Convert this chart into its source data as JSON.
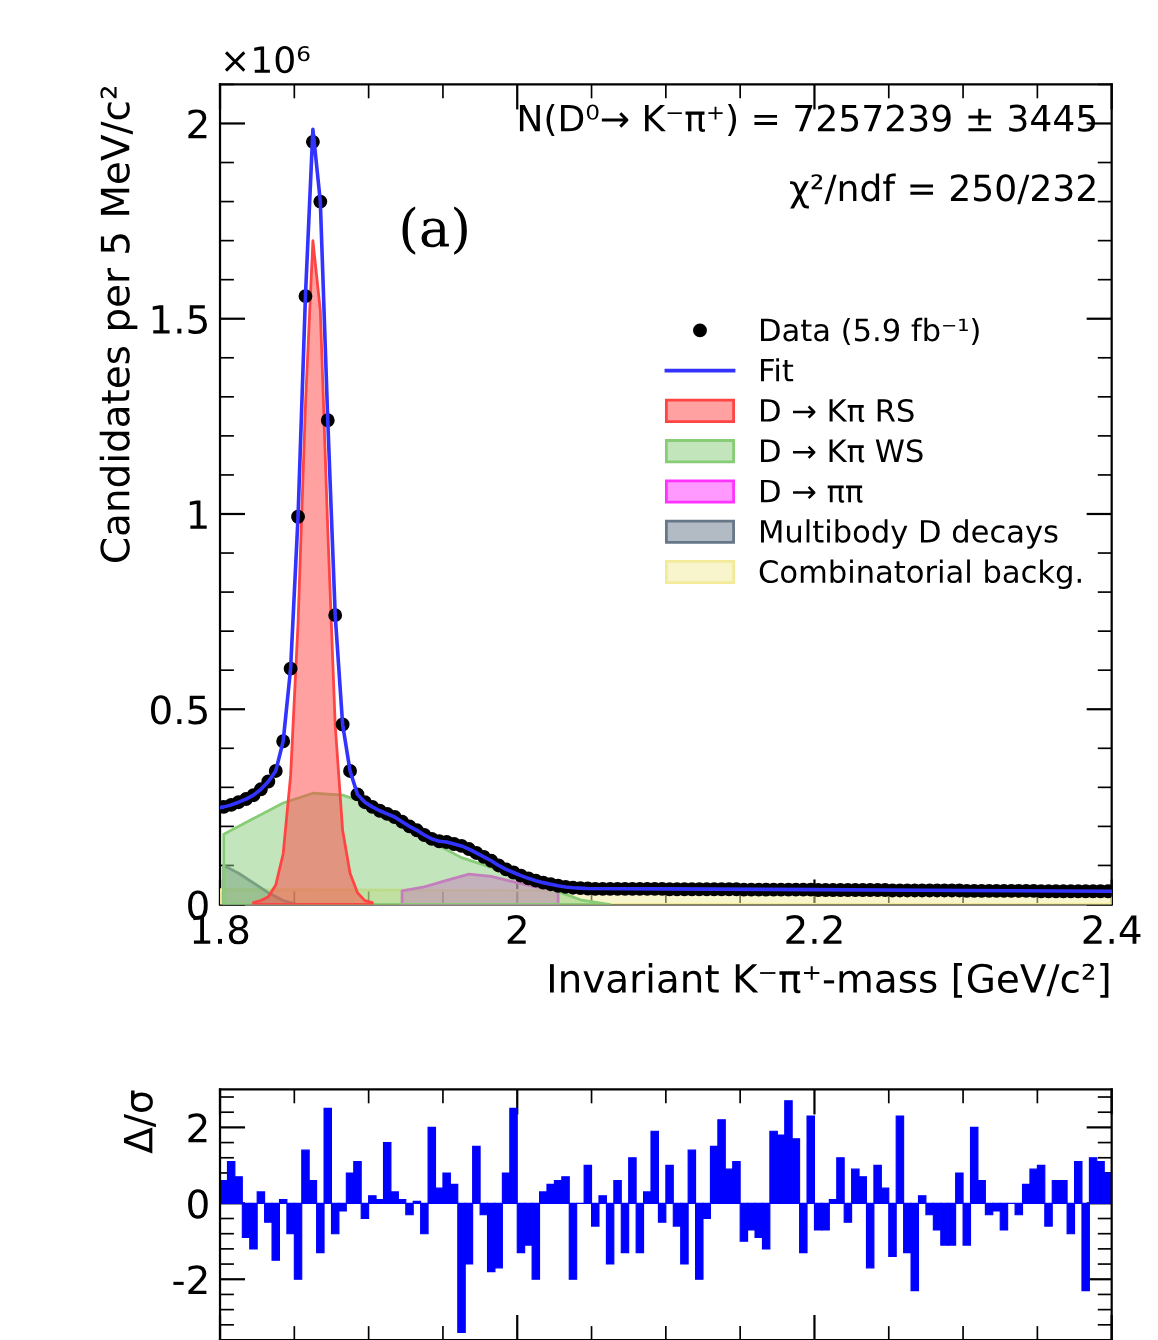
{
  "chart_data": [
    {
      "type": "line",
      "xlabel": "Invariant K⁻π⁺-mass [GeV/c²]",
      "ylabel": "Candidates per 5 MeV/c²",
      "annotations": [
        "N(D⁰→ K⁻π⁺) = 7257239 ± 3445",
        "χ²/ndf = 250/232",
        "(a)",
        "×10⁶"
      ],
      "xlim": [
        1.8,
        2.4
      ],
      "xticks": [
        1.8,
        2,
        2.2,
        2.4
      ],
      "ylim": [
        0,
        2.1
      ],
      "yticks": [
        0,
        0.5,
        1,
        1.5,
        2
      ],
      "legend": "right",
      "series": [
        {
          "name": "Data (5.9 fb⁻¹)",
          "type": "scatter",
          "marker": "circle",
          "color": "#000000",
          "x": [
            1.8025,
            1.8075,
            1.8125,
            1.8175,
            1.8225,
            1.8275,
            1.8325,
            1.8375,
            1.8425,
            1.8475,
            1.8525,
            1.8575,
            1.8625,
            1.8675,
            1.8725,
            1.8775,
            1.8825,
            1.8875,
            1.8925,
            1.8975,
            1.9025,
            1.9075,
            1.9125,
            1.9175,
            1.9225,
            1.9275,
            1.9325,
            1.9375,
            1.9425,
            1.9475,
            1.9525,
            1.9575,
            1.9625,
            1.9675,
            1.9725,
            1.9775,
            1.9825,
            1.9875,
            1.9925,
            1.9975,
            2.0025,
            2.0075,
            2.0125,
            2.0175,
            2.0225,
            2.0275,
            2.0325,
            2.0375,
            2.0425,
            2.0475,
            2.0525,
            2.0575,
            2.0625,
            2.0675,
            2.0725,
            2.0775,
            2.0825,
            2.0875,
            2.0925,
            2.0975,
            2.1025,
            2.1075,
            2.1125,
            2.1175,
            2.1225,
            2.1275,
            2.1325,
            2.1375,
            2.1425,
            2.1475,
            2.1525,
            2.1575,
            2.1625,
            2.1675,
            2.1725,
            2.1775,
            2.1825,
            2.1875,
            2.1925,
            2.1975,
            2.2025,
            2.2075,
            2.2125,
            2.2175,
            2.2225,
            2.2275,
            2.2325,
            2.2375,
            2.2425,
            2.2475,
            2.2525,
            2.2575,
            2.2625,
            2.2675,
            2.2725,
            2.2775,
            2.2825,
            2.2875,
            2.2925,
            2.2975,
            2.3025,
            2.3075,
            2.3125,
            2.3175,
            2.3225,
            2.3275,
            2.3325,
            2.3375,
            2.3425,
            2.3475,
            2.3525,
            2.3575,
            2.3625,
            2.3675,
            2.3725,
            2.3775,
            2.3825,
            2.3875,
            2.3925,
            2.3975
          ],
          "values": [
            0.25,
            0.255,
            0.262,
            0.27,
            0.28,
            0.295,
            0.315,
            0.342,
            0.418,
            0.604,
            0.993,
            1.558,
            1.953,
            1.8,
            1.24,
            0.741,
            0.461,
            0.342,
            0.282,
            0.262,
            0.25,
            0.24,
            0.232,
            0.224,
            0.212,
            0.2,
            0.19,
            0.178,
            0.168,
            0.162,
            0.16,
            0.155,
            0.15,
            0.142,
            0.132,
            0.122,
            0.112,
            0.1,
            0.09,
            0.082,
            0.074,
            0.067,
            0.061,
            0.056,
            0.052,
            0.048,
            0.045,
            0.043,
            0.042,
            0.041,
            0.04,
            0.04,
            0.04,
            0.04,
            0.04,
            0.04,
            0.04,
            0.04,
            0.04,
            0.04,
            0.039,
            0.039,
            0.039,
            0.039,
            0.039,
            0.039,
            0.039,
            0.039,
            0.039,
            0.039,
            0.038,
            0.038,
            0.038,
            0.038,
            0.038,
            0.038,
            0.038,
            0.038,
            0.038,
            0.038,
            0.037,
            0.037,
            0.037,
            0.037,
            0.037,
            0.037,
            0.037,
            0.037,
            0.037,
            0.037,
            0.036,
            0.036,
            0.036,
            0.036,
            0.036,
            0.036,
            0.036,
            0.036,
            0.036,
            0.036,
            0.035,
            0.035,
            0.035,
            0.035,
            0.035,
            0.035,
            0.035,
            0.035,
            0.035,
            0.035,
            0.034,
            0.034,
            0.034,
            0.034,
            0.034,
            0.034,
            0.034,
            0.034,
            0.034,
            0.034
          ]
        },
        {
          "name": "Fit",
          "type": "line",
          "line_style": "solid",
          "color": "#3333ff",
          "x": [
            1.8,
            1.8025,
            1.8075,
            1.8125,
            1.8175,
            1.8225,
            1.8275,
            1.8325,
            1.8375,
            1.8425,
            1.8475,
            1.8525,
            1.8575,
            1.8625,
            1.8675,
            1.8725,
            1.8775,
            1.8825,
            1.8875,
            1.8925,
            1.8975,
            1.9025,
            1.9075,
            1.9125,
            1.9175,
            1.9225,
            1.9275,
            1.9325,
            1.9375,
            1.9425,
            1.9475,
            1.9525,
            1.9575,
            1.9625,
            1.9675,
            1.9725,
            1.9775,
            1.9825,
            1.9875,
            1.9925,
            1.9975,
            2.0025,
            2.0075,
            2.0125,
            2.0175,
            2.0225,
            2.0275,
            2.0325,
            2.0375,
            2.0425,
            2.0475,
            2.1,
            2.2,
            2.3,
            2.4
          ],
          "values": [
            0.248,
            0.25,
            0.255,
            0.262,
            0.27,
            0.28,
            0.295,
            0.315,
            0.342,
            0.418,
            0.604,
            0.993,
            1.56,
            1.985,
            1.8,
            1.24,
            0.741,
            0.461,
            0.342,
            0.282,
            0.262,
            0.25,
            0.24,
            0.232,
            0.224,
            0.212,
            0.2,
            0.19,
            0.178,
            0.168,
            0.162,
            0.16,
            0.155,
            0.15,
            0.142,
            0.132,
            0.122,
            0.112,
            0.1,
            0.09,
            0.082,
            0.074,
            0.067,
            0.061,
            0.056,
            0.052,
            0.048,
            0.045,
            0.043,
            0.042,
            0.041,
            0.04,
            0.038,
            0.036,
            0.034
          ]
        },
        {
          "name": "D → Kπ RS",
          "type": "area",
          "color": "#ff4444",
          "x": [
            1.8225,
            1.8275,
            1.8325,
            1.8375,
            1.8425,
            1.8475,
            1.8525,
            1.8575,
            1.8625,
            1.8675,
            1.8725,
            1.8775,
            1.8825,
            1.8875,
            1.8925,
            1.8975,
            1.9025
          ],
          "values": [
            0.005,
            0.01,
            0.02,
            0.05,
            0.13,
            0.33,
            0.72,
            1.28,
            1.7,
            1.52,
            0.96,
            0.46,
            0.19,
            0.08,
            0.03,
            0.01,
            0.005
          ]
        },
        {
          "name": "D → Kπ WS",
          "type": "area",
          "color": "#88cc77",
          "x": [
            1.8025,
            1.8225,
            1.8425,
            1.8625,
            1.8825,
            1.9025,
            1.9225,
            1.9425,
            1.9625,
            1.9825,
            2.0025,
            2.0225,
            2.0425,
            2.0625
          ],
          "values": [
            0.18,
            0.22,
            0.26,
            0.285,
            0.28,
            0.255,
            0.21,
            0.16,
            0.12,
            0.095,
            0.07,
            0.04,
            0.012,
            0
          ]
        },
        {
          "name": "D → ππ",
          "type": "area",
          "color": "#ff33ff",
          "x": [
            1.9225,
            1.9375,
            1.9525,
            1.9675,
            1.9825,
            1.9975,
            2.0125,
            2.0275
          ],
          "values": [
            0.035,
            0.045,
            0.062,
            0.078,
            0.072,
            0.058,
            0.045,
            0.038
          ]
        },
        {
          "name": "Multibody D decays",
          "type": "area",
          "color": "#667788",
          "x": [
            1.8025,
            1.8125,
            1.8225,
            1.8325,
            1.8425,
            1.8525
          ],
          "values": [
            0.1,
            0.08,
            0.055,
            0.03,
            0.01,
            0
          ]
        },
        {
          "name": "Combinatorial backg.",
          "type": "area",
          "color": "#f2ec9a",
          "x": [
            1.8,
            2.4
          ],
          "values": [
            0.038,
            0.032
          ]
        }
      ]
    },
    {
      "type": "histogram",
      "ylabel": "Δ/σ",
      "color": "#0000ff",
      "xlim": [
        1.8,
        2.4
      ],
      "xticks": [
        1.8,
        2,
        2.2,
        2.4
      ],
      "ylim": [
        -3.6,
        3
      ],
      "yticks": [
        -2,
        0,
        2
      ],
      "tick_labels": "y",
      "bins": [
        1.8,
        1.805,
        1.81,
        1.815,
        1.82,
        1.825,
        1.83,
        1.835,
        1.84,
        1.845,
        1.85,
        1.855,
        1.86,
        1.865,
        1.87,
        1.875,
        1.88,
        1.885,
        1.89,
        1.895,
        1.9,
        1.905,
        1.91,
        1.915,
        1.92,
        1.925,
        1.93,
        1.935,
        1.94,
        1.945,
        1.95,
        1.955,
        1.96,
        1.965,
        1.97,
        1.975,
        1.98,
        1.985,
        1.99,
        1.995,
        2.0,
        2.005,
        2.01,
        2.015,
        2.02,
        2.025,
        2.03,
        2.035,
        2.04,
        2.045,
        2.05,
        2.055,
        2.06,
        2.065,
        2.07,
        2.075,
        2.08,
        2.085,
        2.09,
        2.095,
        2.1,
        2.105,
        2.11,
        2.115,
        2.12,
        2.125,
        2.13,
        2.135,
        2.14,
        2.145,
        2.15,
        2.155,
        2.16,
        2.165,
        2.17,
        2.175,
        2.18,
        2.185,
        2.19,
        2.195,
        2.2,
        2.205,
        2.21,
        2.215,
        2.22,
        2.225,
        2.23,
        2.235,
        2.24,
        2.245,
        2.25,
        2.255,
        2.26,
        2.265,
        2.27,
        2.275,
        2.28,
        2.285,
        2.29,
        2.295,
        2.3,
        2.305,
        2.31,
        2.315,
        2.32,
        2.325,
        2.33,
        2.335,
        2.34,
        2.345,
        2.35,
        2.355,
        2.36,
        2.365,
        2.37,
        2.375,
        2.38,
        2.385,
        2.39,
        2.395,
        2.4
      ],
      "values": [
        0.6,
        1.1,
        0.7,
        -0.9,
        -1.2,
        0.3,
        -0.5,
        -1.5,
        0.1,
        -0.8,
        -2.0,
        1.4,
        0.6,
        -1.3,
        2.5,
        -0.8,
        -0.2,
        0.8,
        1.1,
        -0.4,
        0.2,
        0.1,
        1.6,
        0.3,
        0.1,
        -0.3,
        0.05,
        -0.8,
        2.0,
        0.4,
        0.8,
        0.5,
        -3.4,
        -1.6,
        1.5,
        -0.3,
        -1.8,
        -1.7,
        0.8,
        2.5,
        -1.3,
        -1.1,
        -2.0,
        0.3,
        0.5,
        0.6,
        0.7,
        -2.0,
        0,
        1.0,
        -0.6,
        0.2,
        -1.6,
        0.6,
        -1.3,
        1.2,
        -1.3,
        0.3,
        1.9,
        -0.5,
        1.0,
        -0.6,
        -1.6,
        1.4,
        -2.0,
        -0.4,
        1.5,
        2.2,
        0.9,
        1.1,
        -1.0,
        -0.7,
        -0.9,
        -1.2,
        1.9,
        1.8,
        2.7,
        1.7,
        -1.3,
        2.3,
        -0.7,
        -0.7,
        0.1,
        1.2,
        -0.5,
        0.9,
        0.7,
        -1.7,
        1.0,
        0.4,
        -1.4,
        2.3,
        -1.3,
        -2.3,
        0.2,
        -0.3,
        -0.7,
        -1.1,
        -1.1,
        0.8,
        -1.1,
        2.0,
        0.6,
        -0.3,
        -0.2,
        -0.7,
        0,
        -0.3,
        0.5,
        0.9,
        1.0,
        -0.6,
        0.6,
        0.6,
        -0.8,
        1.1,
        -2.3,
        1.2,
        1.1,
        0.8
      ]
    }
  ]
}
